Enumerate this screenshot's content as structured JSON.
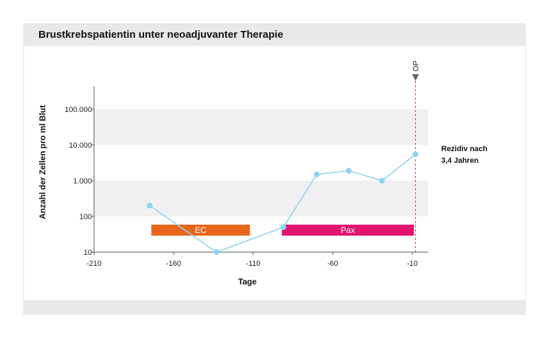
{
  "chart_data": {
    "type": "line",
    "title": "Brustkrebspatientin unter neoadjuvanter Therapie",
    "xlabel": "Tage",
    "ylabel": "Anzahl der Zellen pro ml Blut",
    "yscale": "log",
    "xlim": [
      -210,
      0
    ],
    "ylim": [
      10,
      300000
    ],
    "x_ticks": [
      -210,
      -160,
      -110,
      -60,
      -10
    ],
    "x_tick_labels": [
      "-210",
      "-160",
      "-110",
      "-60",
      "-10"
    ],
    "y_ticks": [
      10,
      100,
      1000,
      10000,
      100000
    ],
    "y_tick_labels": [
      "10",
      "100",
      "1.000",
      "10.000",
      "100.000"
    ],
    "series": [
      {
        "color": "#8ed4f0",
        "x": [
          -175,
          -133,
          -91,
          -70,
          -50,
          -29,
          -8
        ],
        "y": [
          200,
          10,
          50,
          1500,
          1900,
          1000,
          5500
        ]
      }
    ],
    "therapy_bars": [
      {
        "label": "EC",
        "x_start": -174,
        "x_end": -112,
        "color": "#e8661a"
      },
      {
        "label": "Pax",
        "x_start": -92,
        "x_end": -9,
        "color": "#e2146f"
      }
    ],
    "marker_line": {
      "x": -8,
      "label": "OP",
      "color": "#c0392b"
    },
    "annotation": {
      "lines": [
        "Rezidiv nach",
        "3,4 Jahren"
      ]
    },
    "band_color": "#f0f0f3",
    "grid": false
  }
}
